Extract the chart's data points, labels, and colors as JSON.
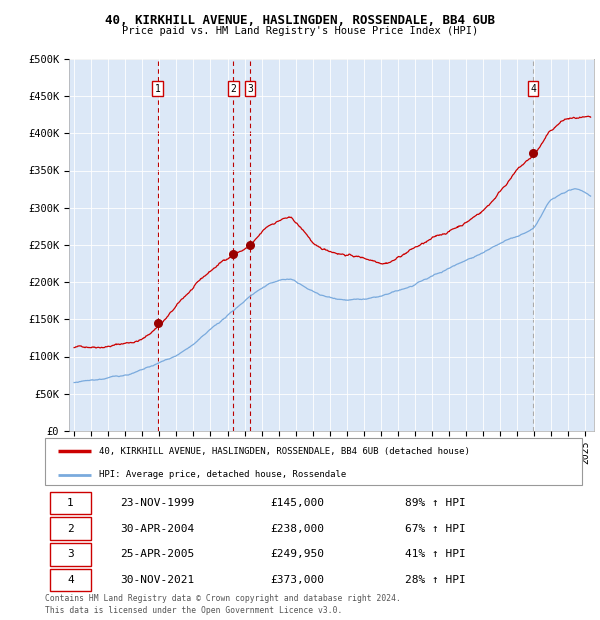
{
  "title1": "40, KIRKHILL AVENUE, HASLINGDEN, ROSSENDALE, BB4 6UB",
  "title2": "Price paid vs. HM Land Registry's House Price Index (HPI)",
  "bg_color": "#dce8f7",
  "red_line_color": "#cc0000",
  "blue_line_color": "#7aaadd",
  "sale_marker_color": "#990000",
  "ylim": [
    0,
    500000
  ],
  "yticks": [
    0,
    50000,
    100000,
    150000,
    200000,
    250000,
    300000,
    350000,
    400000,
    450000,
    500000
  ],
  "ytick_labels": [
    "£0",
    "£50K",
    "£100K",
    "£150K",
    "£200K",
    "£250K",
    "£300K",
    "£350K",
    "£400K",
    "£450K",
    "£500K"
  ],
  "xmin": 1994.7,
  "xmax": 2025.5,
  "xticks": [
    1995,
    1996,
    1997,
    1998,
    1999,
    2000,
    2001,
    2002,
    2003,
    2004,
    2005,
    2006,
    2007,
    2008,
    2009,
    2010,
    2011,
    2012,
    2013,
    2014,
    2015,
    2016,
    2017,
    2018,
    2019,
    2020,
    2021,
    2022,
    2023,
    2024,
    2025
  ],
  "sales": [
    {
      "id": 1,
      "date_num": 1999.9,
      "price": 145000,
      "date_str": "23-NOV-1999",
      "pct": "89%",
      "label": "£145,000"
    },
    {
      "id": 2,
      "date_num": 2004.33,
      "price": 238000,
      "date_str": "30-APR-2004",
      "pct": "67%",
      "label": "£238,000"
    },
    {
      "id": 3,
      "date_num": 2005.32,
      "price": 249950,
      "date_str": "25-APR-2005",
      "pct": "41%",
      "label": "£249,950"
    },
    {
      "id": 4,
      "date_num": 2021.92,
      "price": 373000,
      "date_str": "30-NOV-2021",
      "pct": "28%",
      "label": "£373,000"
    }
  ],
  "legend_label1": "40, KIRKHILL AVENUE, HASLINGDEN, ROSSENDALE, BB4 6UB (detached house)",
  "legend_label2": "HPI: Average price, detached house, Rossendale",
  "footnote1": "Contains HM Land Registry data © Crown copyright and database right 2024.",
  "footnote2": "This data is licensed under the Open Government Licence v3.0.",
  "table_rows": [
    [
      "1",
      "23-NOV-1999",
      "£145,000",
      "89% ↑ HPI"
    ],
    [
      "2",
      "30-APR-2004",
      "£238,000",
      "67% ↑ HPI"
    ],
    [
      "3",
      "25-APR-2005",
      "£249,950",
      "41% ↑ HPI"
    ],
    [
      "4",
      "30-NOV-2021",
      "£373,000",
      "28% ↑ HPI"
    ]
  ]
}
